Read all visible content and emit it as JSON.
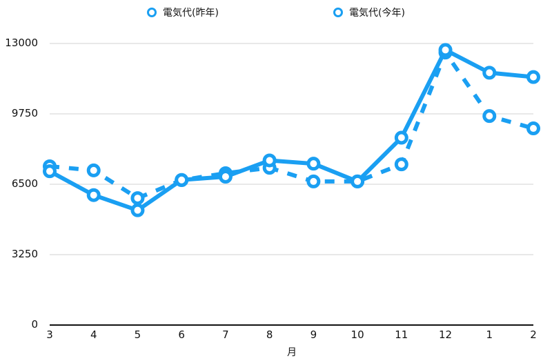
{
  "chart_data": {
    "type": "line",
    "title": "",
    "xlabel": "月",
    "ylabel": "",
    "ylim": [
      0,
      13000
    ],
    "yticks": [
      0,
      3250,
      6500,
      9750,
      13000
    ],
    "grid": true,
    "legend_position": "top",
    "categories": [
      "3",
      "4",
      "5",
      "6",
      "7",
      "8",
      "9",
      "10",
      "11",
      "12",
      "1",
      "2"
    ],
    "series": [
      {
        "name": "電気代(昨年)",
        "style": "solid",
        "color": "#1a9ff2",
        "values": [
          7100,
          6000,
          5300,
          6700,
          6850,
          7600,
          7450,
          6630,
          8650,
          12700,
          11650,
          11450
        ]
      },
      {
        "name": "電気代(今年)",
        "style": "dashed",
        "color": "#1a9ff2",
        "values": [
          7330,
          7140,
          5860,
          6690,
          7010,
          7260,
          6630,
          6630,
          7420,
          12580,
          9650,
          9080
        ]
      }
    ]
  },
  "legend": [
    {
      "label": "電気代(昨年)"
    },
    {
      "label": "電気代(今年)"
    }
  ],
  "axis": {
    "y_labels": [
      "13000",
      "9750",
      "6500",
      "3250",
      "0"
    ],
    "x_labels": [
      "3",
      "4",
      "5",
      "6",
      "7",
      "8",
      "9",
      "10",
      "11",
      "12",
      "1",
      "2"
    ],
    "x_title": "月"
  }
}
